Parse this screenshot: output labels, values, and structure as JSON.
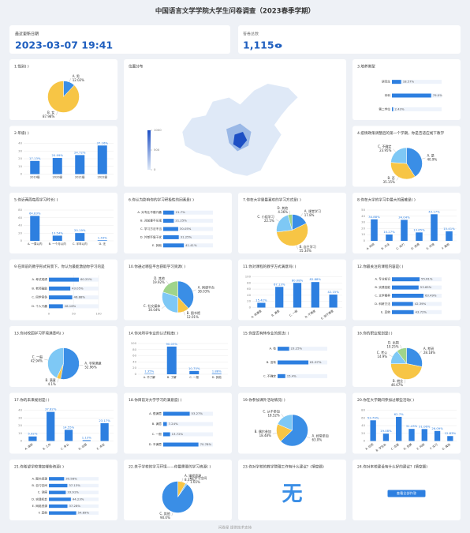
{
  "header": {
    "title": "中国语言文学学院大学生问卷调查（2023春季学期）"
  },
  "stats": [
    {
      "label": "最近更新日期",
      "value": "2023-03-07 19:41"
    },
    {
      "label": "答卷总数",
      "value": "1,115"
    }
  ],
  "footer": "问卷星 提供技术支持",
  "chart_data": [
    {
      "type": "pie",
      "title": "1.性别( )",
      "categories": [
        "A. 男",
        "B. 女"
      ],
      "values": [
        12.02,
        87.98
      ],
      "value_labels": [
        "12.02%",
        "87.98%"
      ],
      "colors": [
        "#3a8ee6",
        "#f7c545"
      ]
    },
    {
      "type": "map",
      "title": "位置分布",
      "legend_lim": [
        0,
        1000
      ],
      "legend_ticks": [
        0,
        500,
        1000
      ],
      "colors": [
        "#1d4fc4",
        "#dfe9f7"
      ]
    },
    {
      "type": "hbar",
      "title": "3.培养类型",
      "categories": [
        "研究生",
        "本科",
        "第二学位"
      ],
      "values": [
        18.57,
        79.0,
        2.43
      ],
      "value_labels": [
        "18.57%",
        "79.0%",
        "2.43%"
      ],
      "xlim": [
        0,
        100
      ],
      "color": "#2d7fe0"
    },
    {
      "type": "bar",
      "title": "2.年级( )",
      "categories": [
        "2019级",
        "2020级",
        "2021级",
        "2022级"
      ],
      "values": [
        17.13,
        20.99,
        24.72,
        37.16
      ],
      "value_labels": [
        "17.13%",
        "20.99%",
        "24.72%",
        "37.16%"
      ],
      "ylim": [
        0,
        40
      ],
      "yticks": [
        0,
        10,
        20,
        30,
        40
      ],
      "color": "#2d7fe0"
    },
    {
      "type": "pie",
      "title": "4.疫情政策调整后的第一个学期，你是否适应线下教学",
      "categories": [
        "A. 是",
        "B. 否",
        "C. 不确定"
      ],
      "values": [
        40.9,
        35.15,
        23.95
      ],
      "value_labels": [
        "40.9%",
        "35.15%",
        "23.95%"
      ],
      "colors": [
        "#3a8ee6",
        "#f7c545",
        "#7ec8f5"
      ]
    },
    {
      "type": "bar",
      "title": "5.你近两周每周学习时长( )",
      "categories": [
        "A. 一周以内",
        "B. 一个月以内",
        "C. 半年以内",
        "D. 无"
      ],
      "values": [
        64.83,
        13.54,
        20.19,
        1.44
      ],
      "value_labels": [
        "64.83%",
        "13.54%",
        "20.19%",
        "1.44%"
      ],
      "ylim": [
        0,
        80
      ],
      "yticks": [
        0,
        20,
        40,
        60,
        80
      ],
      "color": "#2d7fe0"
    },
    {
      "type": "hbar",
      "title": "6.你认为影响你的学习积极性的因素是( )",
      "categories": [
        "A. 对专业不感兴趣",
        "B. 对前景不乐观",
        "C. 学习方法不当",
        "D. 外部环境干扰",
        "E. 其他"
      ],
      "values": [
        21.7,
        21.25,
        30.05,
        31.25,
        41.41
      ],
      "value_labels": [
        "21.7%",
        "21.25%",
        "30.05%",
        "31.25%",
        "41.41%"
      ],
      "xlim": [
        0,
        100
      ],
      "color": "#2d7fe0"
    },
    {
      "type": "pie",
      "title": "7.你在大学里最喜欢的学习方式是( )",
      "categories": [
        "A. 课堂学习",
        "B. 自主学习",
        "C. 小组学习",
        "D. 其他"
      ],
      "values": [
        17.8,
        55.34,
        22.5,
        4.36
      ],
      "value_labels": [
        "17.8%",
        "55.34%",
        "22.5%",
        "4.36%"
      ],
      "colors": [
        "#3a8ee6",
        "#f7c545",
        "#7ec8f5",
        "#9fd48a"
      ]
    },
    {
      "type": "bar",
      "title": "8.你在大学的学习中最大的困难是( )",
      "categories": [
        "A. 时间",
        "B. 方法",
        "C. 动力",
        "D. 资源",
        "E. 环境",
        "F. 其他"
      ],
      "values": [
        34.88,
        10.27,
        34.04,
        13.65,
        43.17,
        15.41
      ],
      "value_labels": [
        "34.88%",
        "10.27%",
        "34.04%",
        "13.65%",
        "43.17%",
        "15.41%"
      ],
      "ylim": [
        0,
        50
      ],
      "yticks": [
        0,
        10,
        20,
        30,
        40,
        50
      ],
      "color": "#2d7fe0"
    },
    {
      "type": "hbar",
      "title": "9.在目前的教学形式背景下，你认为最能激励你学习的是",
      "categories": [
        "A. 考试成绩",
        "B. 老师鼓励",
        "C. 同学竞争",
        "D. 个人兴趣"
      ],
      "values": [
        60.25,
        43.05,
        46.88,
        28.16
      ],
      "value_labels": [
        "60.25%",
        "43.05%",
        "46.88%",
        "28.16%"
      ],
      "xlim": [
        0,
        100
      ],
      "xticks": [
        0,
        50,
        100
      ],
      "color": "#2d7fe0"
    },
    {
      "type": "pie",
      "title": "10.你通过哪些平台获取学习资源( )",
      "categories": [
        "A. 网课平台",
        "B. 图书馆",
        "C. 社交媒体",
        "D. 其他"
      ],
      "values": [
        38.03,
        12.01,
        30.04,
        19.92
      ],
      "value_labels": [
        "38.03%",
        "12.01%",
        "30.04%",
        "19.92%"
      ],
      "colors": [
        "#3a8ee6",
        "#f7c545",
        "#7ec8f5",
        "#9fd48a"
      ]
    },
    {
      "type": "bar",
      "title": "11.你对课程的教学方式满意吗( )",
      "categories": [
        "A. 很满意",
        "B. 满意",
        "C. 一般",
        "D. 不满意",
        "E. 很不满意"
      ],
      "values": [
        15.42,
        67.13,
        80.08,
        82.88,
        42.15
      ],
      "value_labels": [
        "15.42%",
        "67.13%",
        "80.08%",
        "82.88%",
        "42.15%"
      ],
      "ylim": [
        0,
        100
      ],
      "yticks": [
        0,
        20,
        40,
        60,
        80,
        100
      ],
      "color": "#2d7fe0"
    },
    {
      "type": "hbar",
      "title": "12.你最关注的课程内容是( )",
      "categories": [
        "A. 专业知识",
        "B. 实践技能",
        "C. 文学素养",
        "D. 科研方法",
        "E. 其他"
      ],
      "values": [
        55.61,
        53.65,
        63.49,
        42.39,
        43.72
      ],
      "value_labels": [
        "55.61%",
        "53.65%",
        "63.49%",
        "42.39%",
        "43.72%"
      ],
      "xlim": [
        0,
        100
      ],
      "color": "#2d7fe0"
    },
    {
      "type": "pie",
      "title": "13.你对校园学习环境满意吗( )",
      "categories": [
        "A. 非常满意",
        "B. 满意",
        "C. 一般"
      ],
      "values": [
        52.96,
        4.1,
        42.94
      ],
      "value_labels": [
        "52.96%",
        "4.1%",
        "42.94%"
      ],
      "colors": [
        "#3a8ee6",
        "#f7c545",
        "#7ec8f5"
      ]
    },
    {
      "type": "bar",
      "title": "14.你对所学专业的认识程度( )",
      "categories": [
        "A. 不了解",
        "B. 了解",
        "C. 一般",
        "D. 其他"
      ],
      "values": [
        1.35,
        90.03,
        10.75,
        1.88
      ],
      "value_labels": [
        "1.35%",
        "90.03%",
        "10.75%",
        "1.88%"
      ],
      "ylim": [
        0,
        100
      ],
      "yticks": [
        0,
        20,
        40,
        60,
        80,
        100
      ],
      "color": "#2d7fe0"
    },
    {
      "type": "hbar",
      "title": "15.你是否有转专业的想法( )",
      "categories": [
        "A. 有",
        "B. 没有",
        "C. 不确定"
      ],
      "values": [
        23.25,
        61.97,
        15.4
      ],
      "value_labels": [
        "23.25%",
        "61.97%",
        "15.4%"
      ],
      "xlim": [
        0,
        100
      ],
      "color": "#2d7fe0"
    },
    {
      "type": "pie",
      "title": "16.你的职业规划是( )",
      "categories": [
        "A. 考研",
        "B. 就业",
        "C. 考公",
        "D. 出国"
      ],
      "values": [
        28.18,
        46.67,
        14.9,
        10.25
      ],
      "value_labels": [
        "28.18%",
        "46.67%",
        "14.9%",
        "10.25%"
      ],
      "colors": [
        "#3a8ee6",
        "#f7c545",
        "#7ec8f5",
        "#9fd48a"
      ]
    },
    {
      "type": "bar",
      "title": "17.你的未来规划是( )",
      "categories": [
        "A. 读研",
        "B. 工作",
        "C. 考公",
        "D. 出国",
        "E. 未定"
      ],
      "values": [
        5.92,
        37.82,
        14.55,
        1.13,
        23.17
      ],
      "value_labels": [
        "5.92%",
        "37.82%",
        "14.55%",
        "1.13%",
        "23.17%"
      ],
      "ylim": [
        0,
        40
      ],
      "yticks": [
        0,
        10,
        20,
        30,
        40
      ],
      "color": "#2d7fe0"
    },
    {
      "type": "hbar",
      "title": "18.你目前对大学学习的满意度( )",
      "categories": [
        "A. 很满意",
        "B. 满意",
        "C. 一般",
        "D. 不满意"
      ],
      "values": [
        53.27,
        7.24,
        13.72,
        70.78
      ],
      "value_labels": [
        "53.27%",
        "7.24%",
        "13.72%",
        "70.78%"
      ],
      "xlim": [
        0,
        100
      ],
      "color": "#2d7fe0"
    },
    {
      "type": "pie",
      "title": "19.你参加课外活动情况( )",
      "categories": [
        "A. 经常参加",
        "B. 偶尔参加",
        "C. 从不参加"
      ],
      "values": [
        63.0,
        18.48,
        18.52
      ],
      "value_labels": [
        "63.0%",
        "18.48%",
        "18.52%"
      ],
      "colors": [
        "#3a8ee6",
        "#f7c545",
        "#7ec8f5"
      ]
    },
    {
      "type": "bar",
      "title": "20.你在大学期间参加过哪些活动( )",
      "categories": [
        "A. 社团",
        "B. 学生会",
        "C. 志愿",
        "D. 竞赛",
        "E. 科研",
        "F. 实习",
        "G. 其他"
      ],
      "values": [
        53.79,
        19.08,
        62.7,
        31.43,
        31.06,
        26.09,
        12.83
      ],
      "value_labels": [
        "53.79%",
        "19.08%",
        "62.7%",
        "31.43%",
        "31.06%",
        "26.09%",
        "12.83%"
      ],
      "ylim": [
        0,
        80
      ],
      "yticks": [
        0,
        20,
        40,
        60,
        80
      ],
      "color": "#2d7fe0"
    },
    {
      "type": "hbar",
      "title": "21.你希望学校增加哪些资源( )",
      "categories": [
        "A. 图书资源",
        "B. 自习空间",
        "C. 讲座",
        "D. 实践机会",
        "E. 网络资源",
        "F. 其他"
      ],
      "values": [
        30.58,
        37.13,
        33.91,
        44.23,
        37.28,
        54.89
      ],
      "value_labels": [
        "30.58%",
        "37.13%",
        "33.91%",
        "44.23%",
        "37.28%",
        "54.89%"
      ],
      "xlim": [
        0,
        100
      ],
      "color": "#2d7fe0"
    },
    {
      "type": "pie",
      "title": "22.关于学校的学习环境——你最需要的学习资源( )",
      "categories": [
        "A. 课程资源",
        "B. 学习空间",
        "C. 其他"
      ],
      "values": [
        8.35,
        1.65,
        90.0
      ],
      "value_labels": [
        "8.35%",
        "1.65%",
        "90.0%"
      ],
      "colors": [
        "#f7c545",
        "#7ec8f5",
        "#3a8ee6"
      ]
    },
    {
      "type": "wordcloud",
      "title": "23.你对学校的教学管理工作有什么建议？(填空题)",
      "words": [
        "无"
      ],
      "color": "#3a8ee6"
    },
    {
      "type": "text",
      "title": "24.你对本校建设有什么好的建议？(填空题)",
      "button": "查看全部作答",
      "color": "#2d7fe0"
    }
  ]
}
